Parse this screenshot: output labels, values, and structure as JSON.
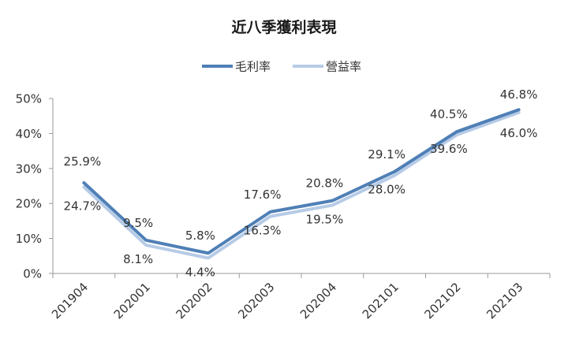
{
  "chart_data": {
    "type": "line",
    "title": "近八季獲利表現",
    "categories": [
      "201904",
      "202001",
      "202002",
      "202003",
      "202004",
      "202101",
      "202102",
      "202103"
    ],
    "series": [
      {
        "name": "毛利率",
        "color": "#4f7fb6",
        "values": [
          25.9,
          9.5,
          5.8,
          17.6,
          20.8,
          29.1,
          40.5,
          46.8
        ],
        "labels": [
          "25.9%",
          "9.5%",
          "5.8%",
          "17.6%",
          "20.8%",
          "29.1%",
          "40.5%",
          "46.8%"
        ]
      },
      {
        "name": "營益率",
        "color": "#b6cbe6",
        "values": [
          24.7,
          8.1,
          4.4,
          16.3,
          19.5,
          28.0,
          39.6,
          46.0
        ],
        "labels": [
          "24.7%",
          "8.1%",
          "4.4%",
          "16.3%",
          "19.5%",
          "28.0%",
          "39.6%",
          "46.0%"
        ]
      }
    ],
    "ylim": [
      0,
      50
    ],
    "yticks": [
      0,
      10,
      20,
      30,
      40,
      50
    ],
    "ytick_labels": [
      "0%",
      "10%",
      "20%",
      "30%",
      "40%",
      "50%"
    ],
    "xlabel": "",
    "ylabel": "",
    "legend_position": "top-center",
    "grid": false
  }
}
